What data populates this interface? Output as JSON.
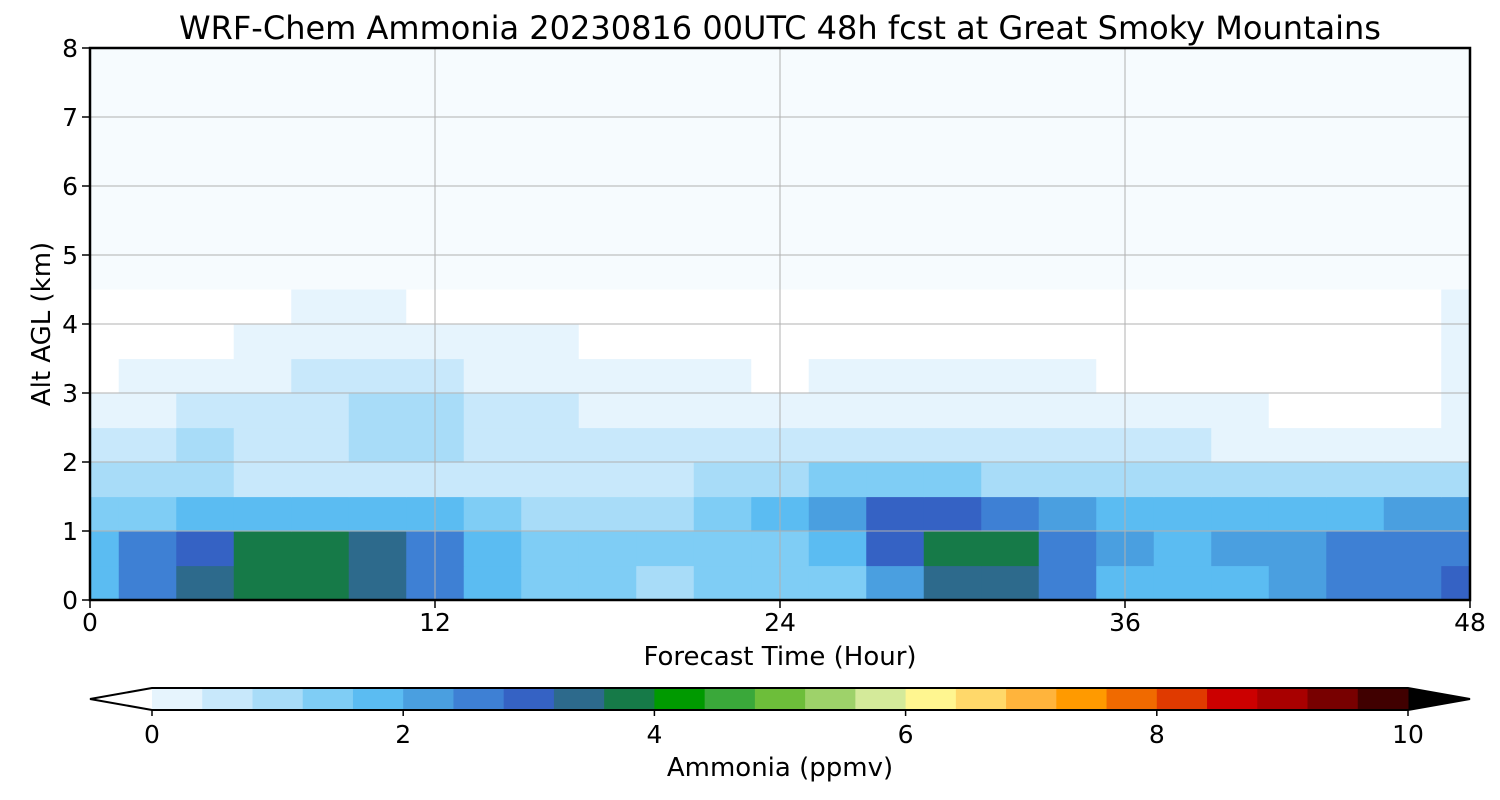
{
  "chart_data": {
    "type": "heatmap",
    "title": "WRF-Chem Ammonia  20230816 00UTC 48h fcst at Great Smoky Mountains",
    "xlabel": "Forecast Time (Hour)",
    "ylabel": "Alt AGL (km)",
    "xlim": [
      0,
      48
    ],
    "ylim": [
      0,
      8
    ],
    "x_ticks": [
      "0",
      "12",
      "24",
      "36",
      "48"
    ],
    "y_ticks": [
      "0",
      "1",
      "2",
      "3",
      "4",
      "5",
      "6",
      "7",
      "8"
    ],
    "grid": true,
    "colorbar": {
      "label": "Ammonia  (ppmv)",
      "min": 0,
      "max": 10,
      "extend": "both",
      "ticks": [
        "0",
        "2",
        "4",
        "6",
        "8",
        "10"
      ],
      "colors": [
        "#ffffff",
        "#e6f4fd",
        "#c8e8fb",
        "#a8dcf8",
        "#7fcdf5",
        "#5bbcf2",
        "#4a9fe0",
        "#3e80d4",
        "#3562c4",
        "#2d6a8c",
        "#167a48",
        "#009a00",
        "#3aa83a",
        "#6dbe3a",
        "#9ed26a",
        "#d4ea9a",
        "#fff690",
        "#ffd86a",
        "#ffb43c",
        "#ff9a00",
        "#f06a00",
        "#e03a00",
        "#cc0000",
        "#a80000",
        "#780000",
        "#400000",
        "#000000"
      ]
    },
    "x": [
      0,
      2,
      4,
      6,
      8,
      10,
      12,
      14,
      16,
      18,
      20,
      22,
      24,
      26,
      28,
      30,
      32,
      34,
      36,
      38,
      40,
      42,
      44,
      46,
      48
    ],
    "y": [
      0.25,
      0.75,
      1.25,
      1.75,
      2.25,
      2.75,
      3.25,
      3.75,
      4.25
    ],
    "values": [
      [
        1.6,
        2.6,
        3.2,
        3.8,
        3.9,
        3.4,
        2.4,
        1.6,
        1.3,
        1.2,
        1.1,
        1.2,
        1.2,
        1.4,
        2.2,
        3.3,
        3.5,
        2.6,
        1.8,
        1.6,
        1.9,
        2.3,
        2.6,
        2.8,
        2.9
      ],
      [
        1.8,
        2.7,
        3.1,
        3.6,
        3.7,
        3.2,
        2.4,
        1.7,
        1.4,
        1.3,
        1.2,
        1.3,
        1.4,
        1.9,
        3.0,
        3.9,
        3.7,
        2.7,
        2.0,
        1.8,
        2.0,
        2.3,
        2.6,
        2.7,
        2.8
      ],
      [
        1.2,
        1.5,
        1.8,
        1.9,
        1.9,
        1.9,
        1.6,
        1.2,
        1.0,
        1.0,
        1.1,
        1.4,
        1.8,
        2.3,
        3.0,
        3.1,
        2.6,
        2.0,
        1.7,
        1.6,
        1.6,
        1.6,
        1.7,
        2.0,
        2.2
      ],
      [
        0.9,
        1.0,
        0.8,
        0.5,
        0.5,
        0.6,
        0.7,
        0.7,
        0.6,
        0.6,
        0.6,
        0.8,
        1.1,
        1.3,
        1.5,
        1.3,
        1.0,
        0.8,
        0.8,
        0.8,
        0.8,
        0.8,
        0.9,
        1.0,
        1.1
      ],
      [
        0.5,
        0.6,
        0.8,
        0.7,
        0.7,
        0.8,
        0.8,
        0.7,
        0.6,
        0.6,
        0.5,
        0.5,
        0.5,
        0.5,
        0.6,
        0.6,
        0.6,
        0.6,
        0.5,
        0.4,
        0.3,
        0.2,
        0.1,
        0.1,
        0.1
      ],
      [
        0.1,
        0.2,
        0.4,
        0.6,
        0.7,
        0.8,
        0.8,
        0.6,
        0.4,
        0.3,
        0.3,
        0.2,
        0.2,
        0.2,
        0.3,
        0.3,
        0.3,
        0.2,
        0.2,
        0.1,
        0.1,
        0.0,
        0.0,
        0.0,
        0.1
      ],
      [
        0.0,
        0.1,
        0.2,
        0.3,
        0.5,
        0.6,
        0.5,
        0.3,
        0.2,
        0.1,
        0.1,
        0.1,
        0.0,
        0.1,
        0.1,
        0.1,
        0.1,
        0.1,
        0.0,
        0.0,
        0.0,
        0.0,
        0.0,
        0.0,
        0.1
      ],
      [
        0.0,
        0.0,
        0.0,
        0.1,
        0.2,
        0.2,
        0.2,
        0.1,
        0.1,
        0.0,
        0.0,
        0.0,
        0.0,
        0.0,
        0.0,
        0.0,
        0.0,
        0.0,
        0.0,
        0.0,
        0.0,
        0.0,
        0.0,
        0.0,
        0.1
      ],
      [
        0.0,
        0.0,
        0.0,
        0.0,
        0.1,
        0.1,
        0.0,
        0.0,
        0.0,
        0.0,
        0.0,
        0.0,
        0.0,
        0.0,
        0.0,
        0.0,
        0.0,
        0.0,
        0.0,
        0.0,
        0.0,
        0.0,
        0.0,
        0.0,
        0.1
      ]
    ]
  }
}
